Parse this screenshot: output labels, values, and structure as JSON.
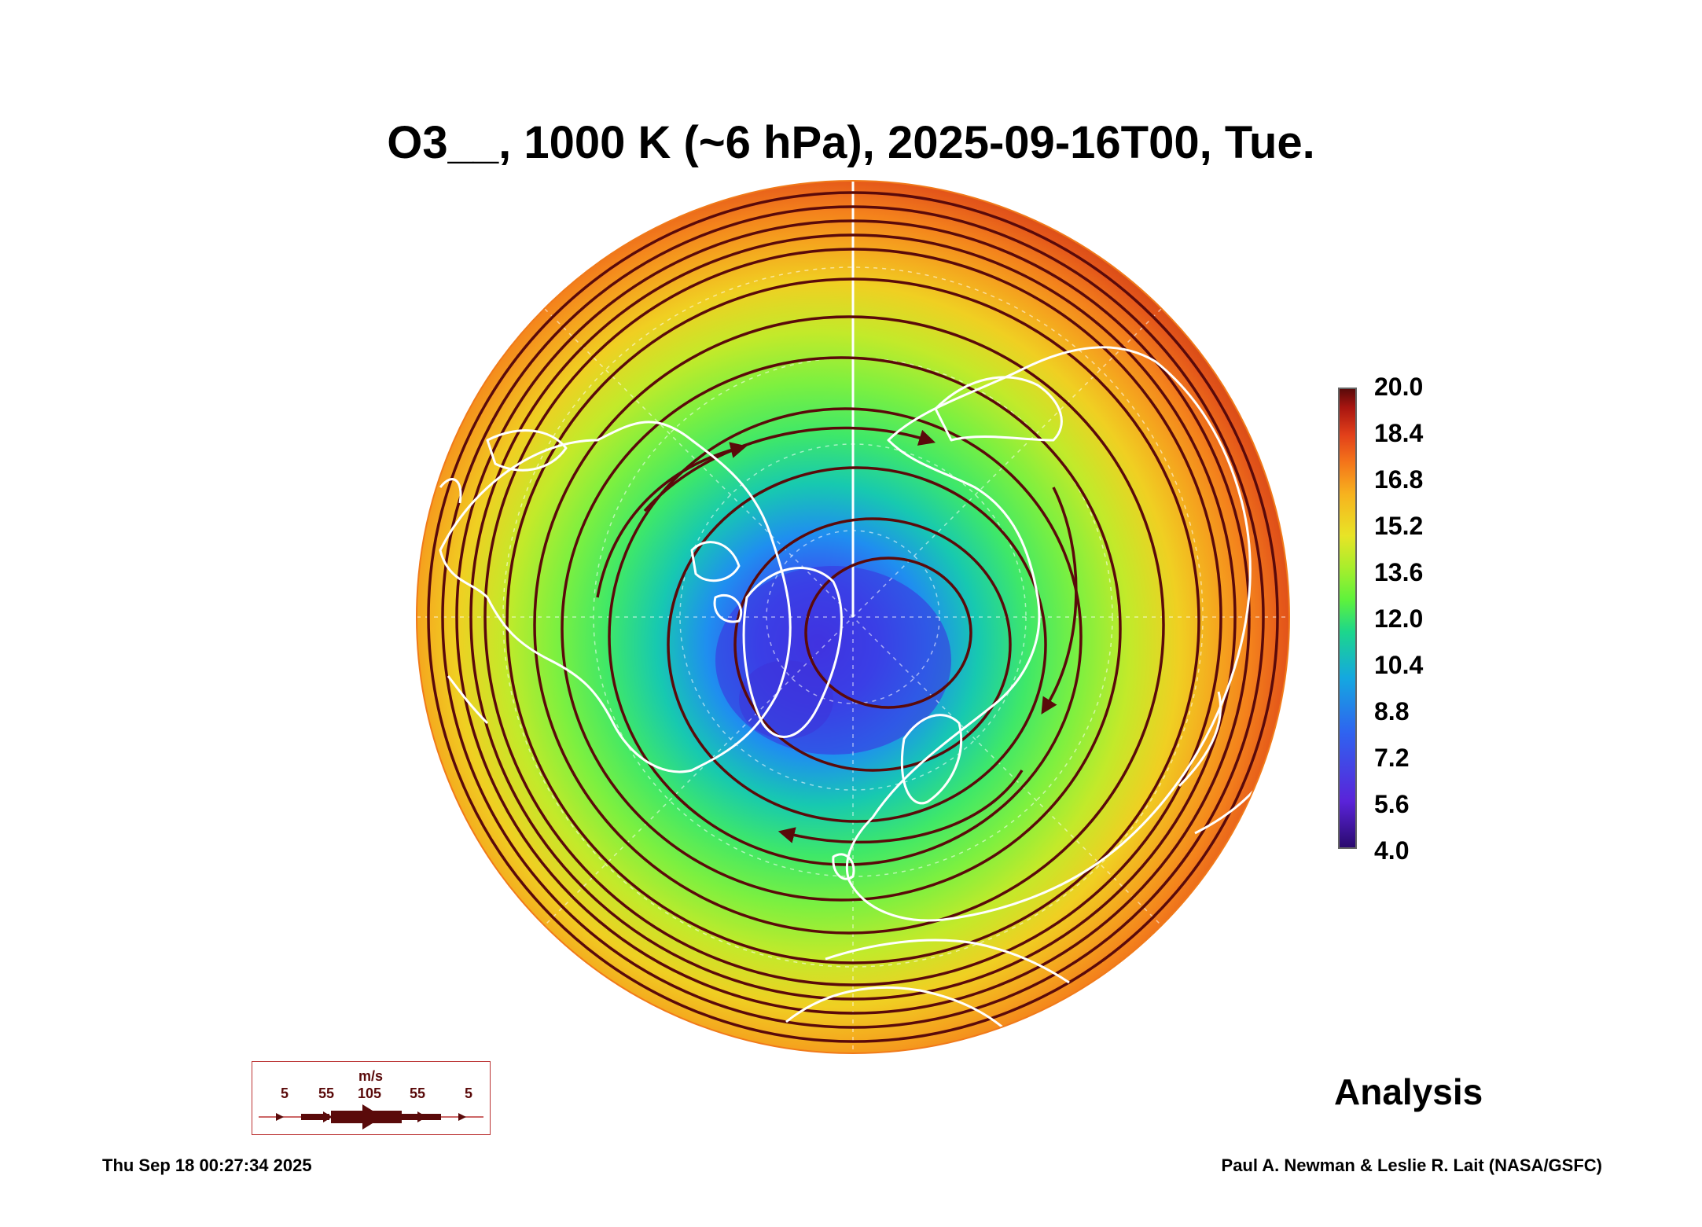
{
  "title": "O3__, 1000 K (~6 hPa), 2025-09-16T00, Tue.",
  "colorbar": {
    "ticks": [
      "20.0",
      "18.4",
      "16.8",
      "15.2",
      "13.6",
      "12.0",
      "10.4",
      "8.8",
      "7.2",
      "5.6",
      "4.0"
    ],
    "min": 4.0,
    "max": 20.0
  },
  "label_analysis": "Analysis",
  "timestamp": "Thu Sep 18 00:27:34 2025",
  "credit": "Paul A. Newman & Leslie R. Lait (NASA/GSFC)",
  "wind_legend": {
    "unit": "m/s",
    "labels": [
      "5",
      "55",
      "105",
      "55",
      "5"
    ]
  },
  "colors": {
    "ozone_high": "#5a0a0a",
    "ozone_low": "#2a0a6e",
    "streamline": "#5a0a0a",
    "coastline": "#ffffff"
  }
}
